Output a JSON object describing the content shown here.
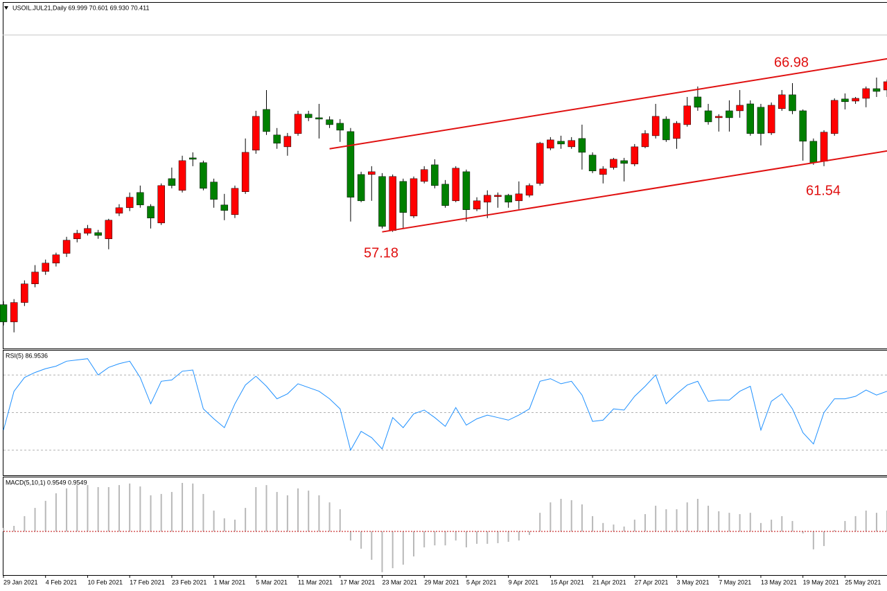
{
  "chart_data": [
    {
      "type": "candlestick",
      "title": "USOIL.JUL21,Daily 69.999 70.601 69.930 70.411",
      "categories": [
        "29 Jan 2021",
        null,
        null,
        null,
        "4 Feb 2021",
        null,
        null,
        null,
        "10 Feb 2021",
        null,
        null,
        null,
        "17 Feb 2021",
        null,
        null,
        null,
        "23 Feb 2021",
        null,
        null,
        null,
        "1 Mar 2021",
        null,
        null,
        null,
        "5 Mar 2021",
        null,
        null,
        null,
        "11 Mar 2021",
        null,
        null,
        null,
        "17 Mar 2021",
        null,
        null,
        null,
        "23 Mar 2021",
        null,
        null,
        null,
        "29 Mar 2021",
        null,
        null,
        null,
        "5 Apr 2021",
        null,
        null,
        null,
        "9 Apr 2021",
        null,
        null,
        null,
        "15 Apr 2021",
        null,
        null,
        null,
        "21 Apr 2021",
        null,
        null,
        null,
        "27 Apr 2021",
        null,
        null,
        null,
        "3 May 2021",
        null,
        null,
        null,
        "7 May 2021",
        null,
        null,
        null,
        "13 May 2021",
        null,
        null,
        null,
        "19 May 2021",
        null,
        null,
        null,
        "25 May 2021",
        null,
        null,
        null,
        null
      ],
      "open": [
        52.45,
        51.33,
        52.59,
        53.8,
        54.61,
        55.15,
        55.78,
        56.73,
        57.09,
        57.13,
        56.73,
        58.39,
        58.75,
        59.74,
        58.84,
        57.76,
        60.64,
        59.88,
        61.99,
        61.68,
        60.42,
        58.93,
        58.3,
        59.79,
        62.49,
        65.14,
        63.48,
        62.71,
        63.57,
        64.83,
        64.6,
        64.47,
        64.24,
        63.7,
        60.91,
        60.91,
        60.78,
        57.27,
        60.46,
        58.21,
        60.46,
        61.54,
        60.28,
        59.2,
        61.09,
        58.66,
        59.11,
        59.47,
        59.56,
        59.2,
        59.56,
        60.33,
        62.62,
        63.07,
        62.71,
        63.25,
        62.17,
        60.91,
        61.36,
        61.81,
        61.59,
        62.71,
        63.43,
        64.51,
        63.25,
        64.15,
        65.95,
        65.05,
        64.6,
        65.05,
        65.05,
        65.5,
        65.28,
        63.61,
        65.19,
        66.09,
        65.05,
        63.07,
        61.77,
        63.57,
        65.82,
        65.68,
        65.86,
        66.49,
        66.4
      ],
      "high": [
        52.68,
        52.81,
        54.03,
        55.02,
        55.38,
        55.83,
        56.86,
        57.31,
        57.63,
        57.31,
        58.03,
        58.98,
        59.74,
        60.19,
        58.98,
        60.33,
        61.36,
        62.13,
        62.35,
        61.81,
        60.64,
        59.65,
        60.19,
        63.25,
        65.05,
        66.4,
        63.93,
        63.61,
        65.05,
        65.05,
        65.5,
        64.69,
        64.51,
        63.93,
        61.09,
        61.45,
        61.0,
        60.91,
        60.64,
        60.78,
        61.45,
        61.9,
        60.55,
        61.45,
        61.23,
        59.43,
        59.88,
        59.74,
        59.65,
        60.46,
        60.33,
        63.03,
        63.34,
        63.43,
        63.34,
        64.15,
        62.35,
        61.45,
        61.99,
        61.99,
        62.89,
        63.79,
        65.5,
        64.69,
        64.38,
        65.95,
        66.63,
        65.5,
        64.83,
        65.73,
        66.4,
        65.73,
        65.5,
        65.59,
        66.4,
        66.85,
        65.14,
        63.25,
        63.79,
        65.86,
        66.18,
        65.95,
        66.63,
        67.21,
        67.08
      ],
      "low": [
        51.1,
        50.65,
        52.36,
        53.58,
        54.39,
        54.93,
        55.55,
        56.5,
        56.95,
        56.73,
        56.05,
        58.21,
        58.53,
        58.75,
        57.4,
        57.63,
        60.01,
        59.74,
        61.45,
        59.88,
        58.75,
        57.94,
        58.08,
        59.65,
        62.26,
        63.48,
        62.58,
        62.13,
        63.43,
        64.38,
        63.25,
        63.93,
        63.03,
        57.85,
        59.11,
        59.2,
        57.4,
        57.18,
        57.4,
        58.08,
        60.33,
        60.01,
        58.75,
        59.11,
        57.85,
        58.53,
        58.08,
        58.75,
        58.75,
        58.66,
        59.43,
        60.19,
        62.49,
        62.58,
        62.58,
        61.23,
        61.0,
        60.33,
        61.23,
        60.46,
        61.45,
        62.62,
        63.25,
        63.03,
        62.58,
        64.02,
        65.05,
        64.15,
        63.7,
        63.7,
        64.6,
        63.43,
        62.8,
        63.48,
        65.05,
        64.83,
        61.81,
        61.54,
        61.45,
        63.43,
        65.14,
        65.5,
        65.28,
        65.95,
        65.95
      ],
      "close": [
        51.33,
        52.59,
        53.8,
        54.57,
        55.15,
        55.69,
        56.64,
        57.09,
        57.4,
        56.95,
        57.94,
        58.75,
        59.43,
        58.93,
        58.08,
        60.19,
        60.19,
        61.81,
        61.9,
        60.01,
        59.29,
        58.57,
        60.01,
        62.35,
        64.69,
        63.7,
        62.94,
        63.39,
        64.83,
        64.6,
        64.51,
        64.15,
        63.79,
        59.43,
        59.2,
        61.09,
        57.54,
        60.78,
        58.44,
        60.64,
        61.23,
        60.19,
        58.89,
        61.32,
        58.62,
        59.2,
        59.56,
        59.56,
        59.11,
        59.65,
        60.19,
        62.94,
        63.16,
        62.89,
        63.12,
        62.35,
        61.14,
        61.27,
        61.9,
        61.63,
        62.71,
        63.57,
        64.69,
        63.16,
        64.24,
        65.37,
        65.28,
        64.33,
        64.69,
        64.6,
        65.41,
        63.57,
        63.57,
        65.41,
        66.09,
        65.05,
        63.07,
        61.68,
        63.66,
        65.73,
        65.64,
        65.86,
        66.49,
        66.31,
        66.94
      ],
      "up_color": "#ff0000",
      "down_color": "#008000",
      "ylim": [
        49.6,
        70
      ],
      "trend_lines": [
        {
          "color": "#e01010",
          "x": [
            31,
            84
          ],
          "values": [
            62.58,
            68.43
          ]
        },
        {
          "color": "#e01010",
          "x": [
            36,
            84
          ],
          "values": [
            57.18,
            62.44
          ]
        }
      ],
      "annotations": [
        "57.18",
        "66.98",
        "61.54"
      ]
    },
    {
      "type": "line",
      "title": "RSI(5) 86.9536",
      "color": "#1e90ff",
      "ylim": [
        0,
        100
      ],
      "levels": [
        20,
        50,
        80
      ],
      "values": [
        36,
        67,
        78,
        82,
        85,
        87,
        91,
        92,
        93,
        80,
        86,
        89,
        91,
        78,
        57,
        75,
        76,
        83,
        84,
        53,
        45,
        38,
        57,
        72,
        79,
        71,
        61,
        65,
        73,
        70,
        67,
        61,
        53,
        20,
        35,
        30,
        21,
        46,
        38,
        49,
        52,
        46,
        39,
        54,
        40,
        45,
        48,
        46,
        44,
        48,
        53,
        75,
        77,
        73,
        75,
        64,
        43,
        44,
        53,
        52,
        63,
        71,
        80,
        57,
        65,
        72,
        75,
        59,
        60,
        60,
        67,
        71,
        36,
        59,
        65,
        53,
        34,
        25,
        50,
        61,
        61,
        63,
        68,
        64,
        67
      ]
    },
    {
      "type": "bar",
      "title": "MACD(5,10,1) 0.9549 0.9549",
      "color": "#b8b8b8",
      "zero_line_color": "#c00000",
      "ylim": [
        -1.97,
        2.47
      ],
      "values": [
        0.16,
        0.25,
        0.69,
        1.06,
        1.38,
        1.72,
        1.94,
        2.09,
        2.09,
        2.0,
        2.0,
        2.09,
        2.16,
        2.03,
        1.63,
        1.69,
        1.78,
        2.19,
        2.16,
        1.69,
        0.94,
        0.59,
        0.53,
        1.06,
        2.0,
        2.09,
        1.78,
        1.63,
        1.94,
        1.84,
        1.63,
        1.31,
        1.0,
        -0.41,
        -0.78,
        -1.28,
        -1.84,
        -1.66,
        -1.5,
        -1.13,
        -0.72,
        -0.63,
        -0.63,
        -0.41,
        -0.72,
        -0.56,
        -0.56,
        -0.53,
        -0.47,
        -0.41,
        -0.16,
        0.84,
        1.31,
        1.47,
        1.41,
        1.22,
        0.69,
        0.38,
        0.31,
        0.22,
        0.53,
        0.78,
        1.16,
        1.0,
        1.0,
        1.31,
        1.47,
        1.16,
        0.91,
        0.84,
        0.78,
        0.84,
        0.38,
        0.53,
        0.69,
        0.47,
        -0.09,
        -0.81,
        -0.66,
        0.06,
        0.47,
        0.69,
        0.94,
        0.84,
        0.94
      ]
    }
  ]
}
